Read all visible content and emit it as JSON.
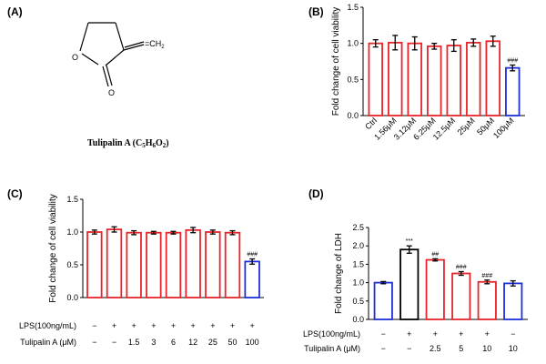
{
  "panels": {
    "A": {
      "label": "(A)",
      "substituent": "=CH",
      "substituent_sub": "2",
      "ring_o": "O",
      "carbonyl_o": "O",
      "caption": {
        "name": "Tulipalin A (C",
        "c_sub": "5",
        "h": "H",
        "h_sub": "6",
        "o": "O",
        "o_sub": "2",
        "close": ")"
      }
    }
  },
  "chart_data": [
    {
      "id": "B",
      "panel_label": "(B)",
      "type": "bar",
      "ylabel": "Fold change of  cell viability",
      "ylim": [
        0,
        1.5
      ],
      "yticks": [
        "0.0",
        "0.5",
        "1.0",
        "1.5"
      ],
      "categories": [
        "Ctrl",
        "1.56μM",
        "3.12μM",
        "6.25μM",
        "12.5μM",
        "25μM",
        "50μM",
        "100μM"
      ],
      "values": [
        1.0,
        1.01,
        1.0,
        0.96,
        0.97,
        1.01,
        1.03,
        0.66
      ],
      "errors": [
        0.05,
        0.1,
        0.09,
        0.04,
        0.08,
        0.05,
        0.07,
        0.04
      ],
      "colors": [
        "#e8252a",
        "#e8252a",
        "#e8252a",
        "#e8252a",
        "#e8252a",
        "#e8252a",
        "#e8252a",
        "#1f2fd6"
      ],
      "annotations": [
        "",
        "",
        "",
        "",
        "",
        "",
        "",
        "###"
      ],
      "legend": "none",
      "grid": false
    },
    {
      "id": "C",
      "panel_label": "(C)",
      "type": "bar",
      "ylabel": "Fold change of  cell viability",
      "ylim": [
        0,
        1.5
      ],
      "yticks": [
        "0.0",
        "0.5",
        "1.0",
        "1.5"
      ],
      "row1_label": "LPS(100ng/mL)",
      "row2_label": "Tulipalin A (μM)",
      "row1": [
        "−",
        "+",
        "+",
        "+",
        "+",
        "+",
        "+",
        "+",
        "+"
      ],
      "row2": [
        "−",
        "−",
        "1.5",
        "3",
        "6",
        "12",
        "25",
        "50",
        "100"
      ],
      "values": [
        1.0,
        1.04,
        0.99,
        0.99,
        0.99,
        1.03,
        1.0,
        0.99,
        0.55
      ],
      "errors": [
        0.03,
        0.04,
        0.03,
        0.02,
        0.02,
        0.04,
        0.03,
        0.03,
        0.04
      ],
      "colors": [
        "#e8252a",
        "#e8252a",
        "#e8252a",
        "#e8252a",
        "#e8252a",
        "#e8252a",
        "#e8252a",
        "#e8252a",
        "#1f2fd6"
      ],
      "annotations": [
        "",
        "",
        "",
        "",
        "",
        "",
        "",
        "",
        "###"
      ],
      "legend": "none",
      "grid": false
    },
    {
      "id": "D",
      "panel_label": "(D)",
      "type": "bar",
      "ylabel": "Fold change of LDH",
      "ylim": [
        0,
        2.5
      ],
      "yticks": [
        "0.0",
        "0.5",
        "1.0",
        "1.5",
        "2.0",
        "2.5"
      ],
      "row1_label": "LPS(100ng/mL)",
      "row2_label": "Tulipalin A (μM)",
      "row1": [
        "−",
        "+",
        "+",
        "+",
        "+",
        "−"
      ],
      "row2": [
        "−",
        "−",
        "2.5",
        "5",
        "10",
        "10"
      ],
      "values": [
        1.0,
        1.9,
        1.62,
        1.25,
        1.02,
        0.98
      ],
      "errors": [
        0.03,
        0.1,
        0.03,
        0.05,
        0.05,
        0.07
      ],
      "colors": [
        "#1f2fd6",
        "#000000",
        "#e8252a",
        "#e8252a",
        "#e8252a",
        "#1f2fd6"
      ],
      "annotations": [
        "",
        "***",
        "##",
        "###",
        "###",
        ""
      ],
      "legend": "none",
      "grid": false
    }
  ]
}
